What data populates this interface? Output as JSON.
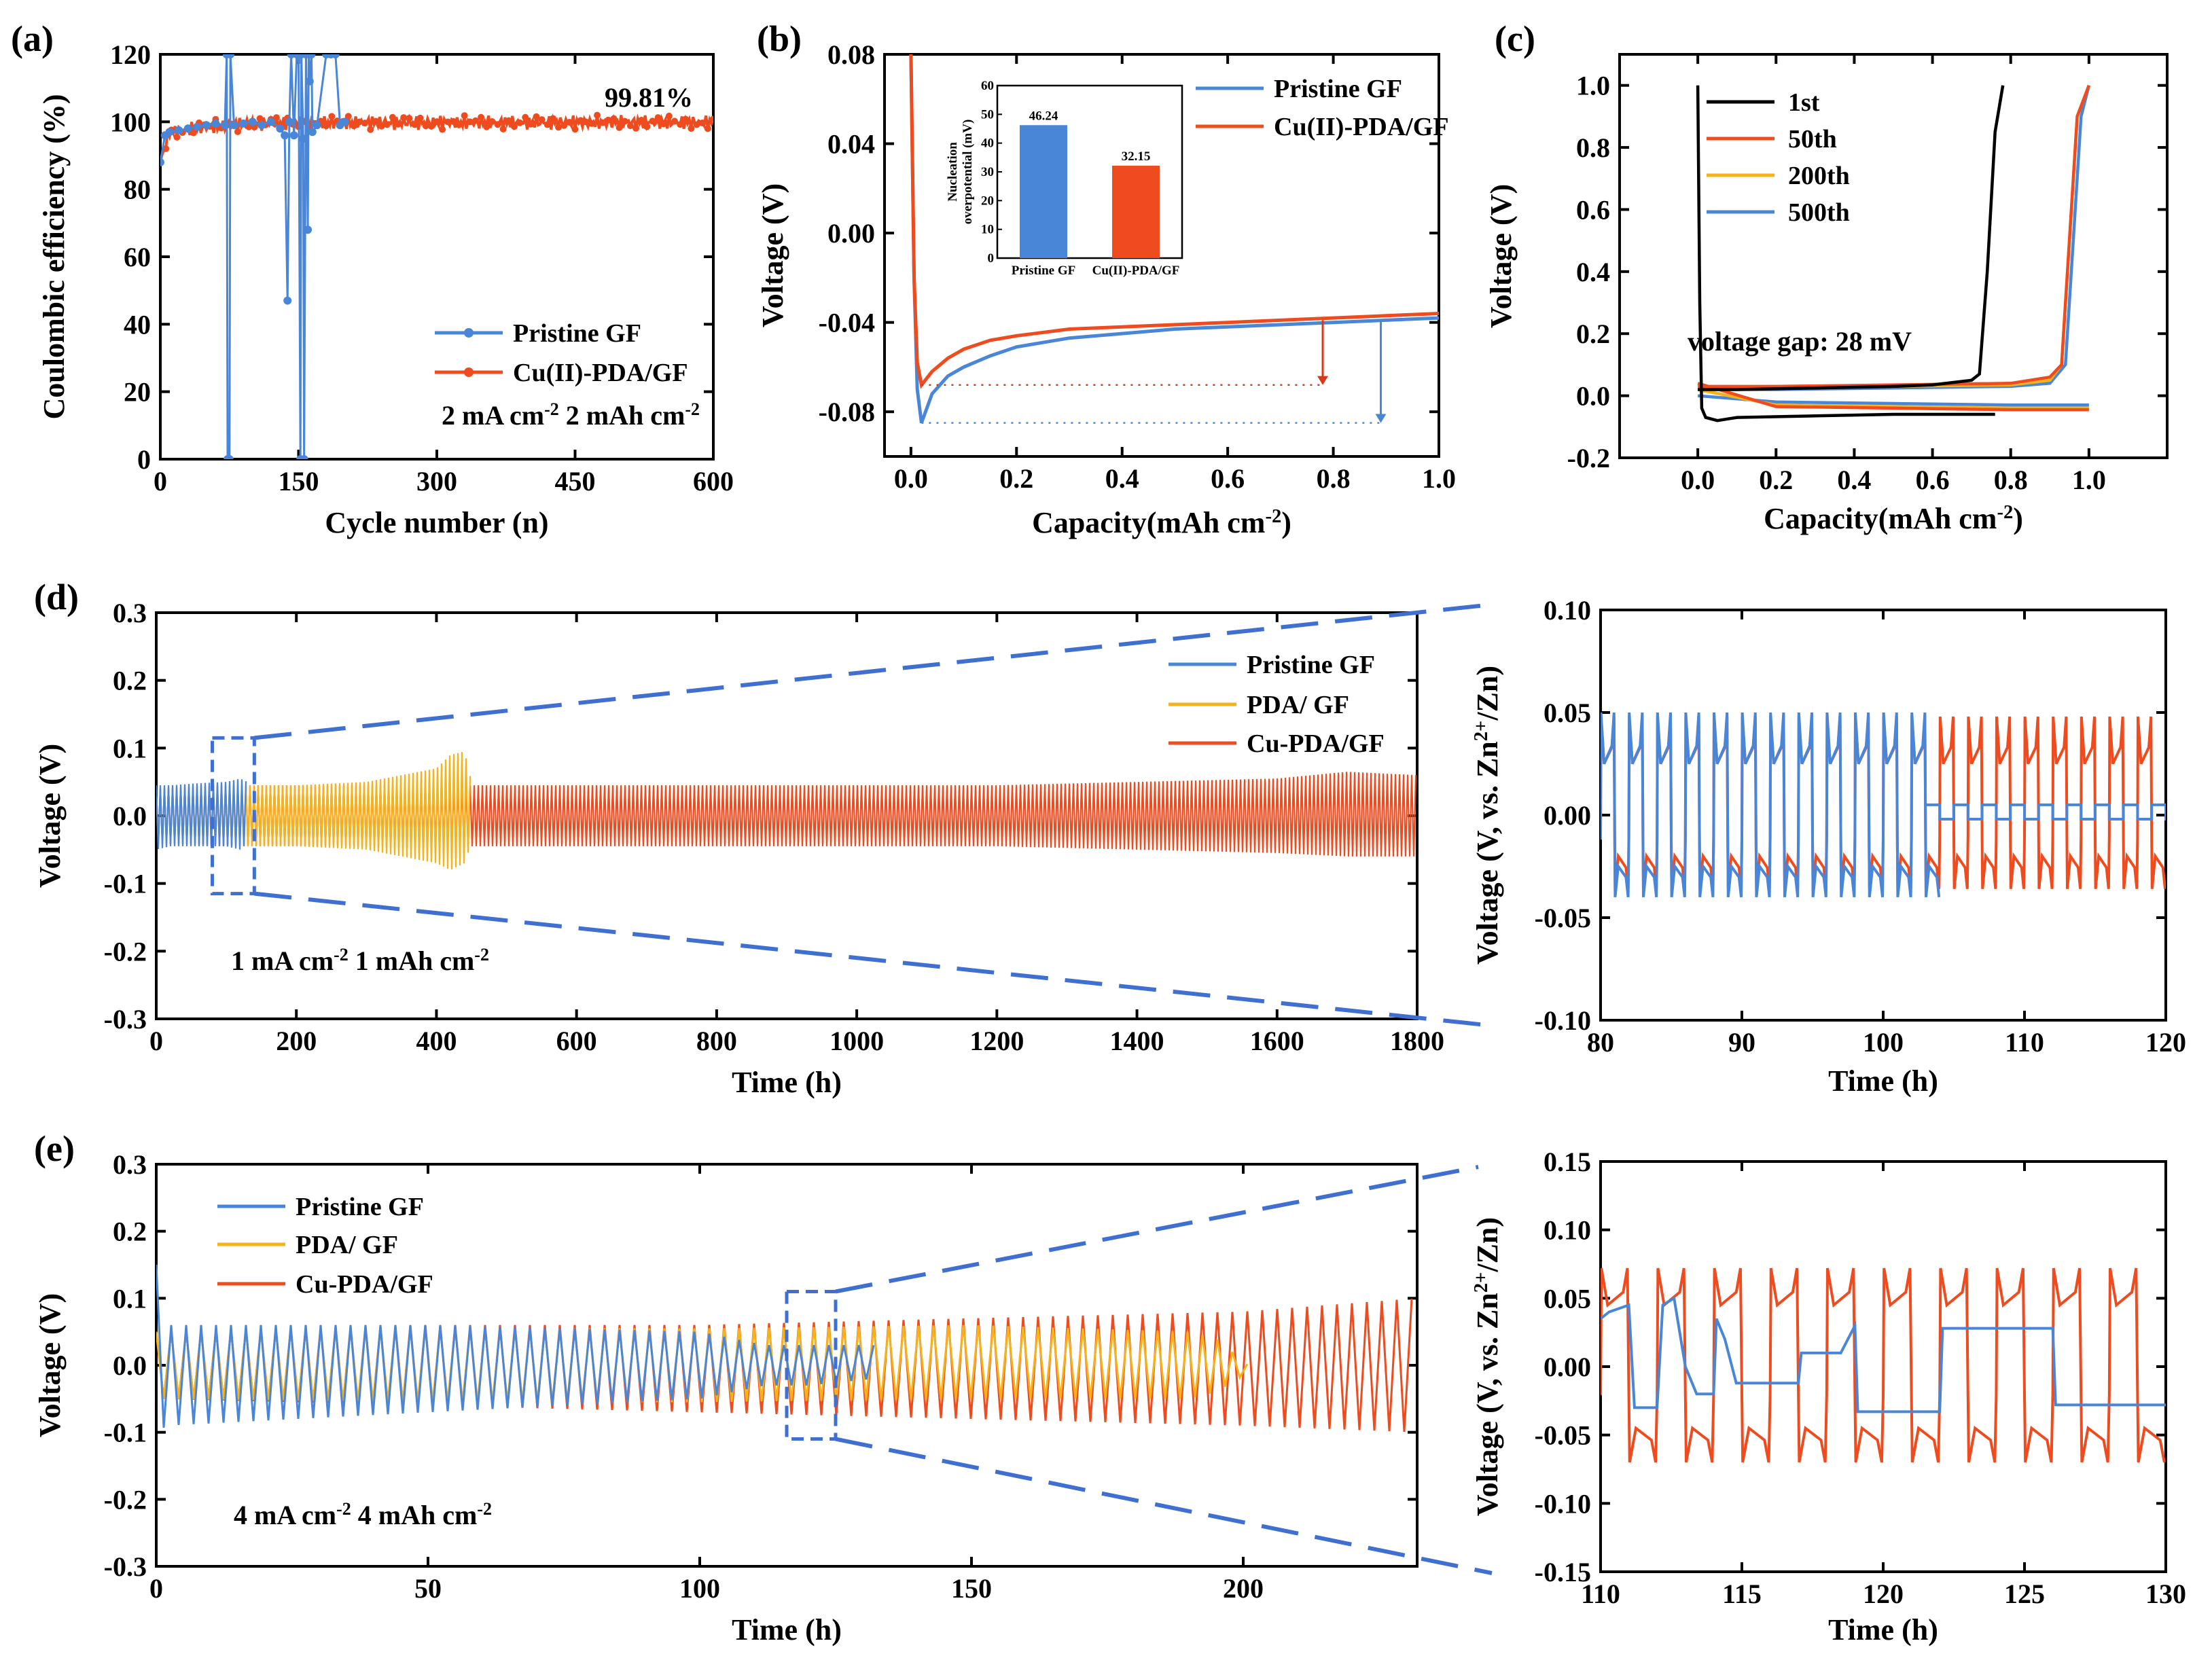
{
  "colors": {
    "blue": "#4a86d8",
    "red": "#ee4b1f",
    "orange": "#f5b21a",
    "black": "#000000",
    "dash_blue": "#3f6fd0",
    "darkred": "#d8391c"
  },
  "chart_data": [
    {
      "id": "a",
      "panel_label": "(a)",
      "type": "line",
      "xlabel": "Cycle number (n)",
      "ylabel": "Coulombic efficiency (%)",
      "xlim": [
        0,
        600
      ],
      "ylim": [
        0,
        120
      ],
      "xticks": [
        "0",
        "150",
        "300",
        "450",
        "600"
      ],
      "yticks": [
        "0",
        "20",
        "40",
        "60",
        "80",
        "100",
        "120"
      ],
      "series": [
        {
          "name": "Pristine GF",
          "color": "#4a86d8",
          "x": [
            0,
            5,
            10,
            20,
            30,
            40,
            50,
            60,
            70,
            72,
            73,
            75,
            76,
            80,
            90,
            100,
            110,
            120,
            130,
            135,
            138,
            140,
            142,
            145,
            148,
            150,
            152,
            153,
            155,
            156,
            158,
            160,
            161,
            162,
            164,
            165,
            170,
            180,
            185,
            190,
            195,
            200
          ],
          "y": [
            88,
            96,
            97,
            97.5,
            98,
            98.5,
            99,
            99.5,
            99,
            120,
            0,
            0,
            120,
            99,
            99.5,
            100,
            99,
            100,
            98,
            96,
            47,
            100,
            120,
            96,
            120,
            120,
            0,
            120,
            95,
            0,
            120,
            68,
            120,
            112,
            120,
            97,
            99,
            120,
            120,
            120,
            99,
            100
          ]
        },
        {
          "name": "Cu(II)-PDA/GF",
          "color": "#ee4b1f",
          "x": [
            0,
            10,
            50,
            100,
            150,
            200,
            300,
            400,
            500,
            600
          ],
          "y": [
            88,
            97,
            98.5,
            99.5,
            99.8,
            99.8,
            99.8,
            99.8,
            99.8,
            99.8
          ]
        }
      ],
      "annotations": [
        "99.81%",
        "2 mA  cm<sup>-2</sup> 2 mAh cm<sup>-2</sup>"
      ]
    },
    {
      "id": "b",
      "panel_label": "(b)",
      "type": "line",
      "xlabel": "Capacity(mAh cm<sup>-2</sup>)",
      "ylabel": "Voltage (V)",
      "xlim": [
        -0.05,
        1.0
      ],
      "ylim": [
        -0.1,
        0.08
      ],
      "xticks": [
        "0.0",
        "0.2",
        "0.4",
        "0.6",
        "0.8",
        "1.0"
      ],
      "yticks": [
        "-0.08",
        "-0.04",
        "0.00",
        "0.04",
        "0.08"
      ],
      "series": [
        {
          "name": "Pristine GF",
          "color": "#4a86d8",
          "x": [
            0.0,
            0.006,
            0.012,
            0.02,
            0.04,
            0.07,
            0.1,
            0.15,
            0.2,
            0.3,
            0.4,
            0.5,
            0.6,
            0.7,
            0.8,
            0.9,
            1.0
          ],
          "y": [
            0.08,
            -0.02,
            -0.07,
            -0.085,
            -0.072,
            -0.064,
            -0.06,
            -0.055,
            -0.051,
            -0.047,
            -0.045,
            -0.043,
            -0.042,
            -0.041,
            -0.04,
            -0.039,
            -0.038
          ]
        },
        {
          "name": "Cu(II)-PDA/GF",
          "color": "#ee4b1f",
          "x": [
            0.0,
            0.006,
            0.012,
            0.02,
            0.04,
            0.07,
            0.1,
            0.15,
            0.2,
            0.3,
            0.4,
            0.5,
            0.6,
            0.7,
            0.8,
            0.9,
            1.0
          ],
          "y": [
            0.08,
            -0.02,
            -0.058,
            -0.068,
            -0.062,
            -0.056,
            -0.052,
            -0.048,
            -0.046,
            -0.043,
            -0.042,
            -0.041,
            -0.04,
            -0.039,
            -0.038,
            -0.037,
            -0.036
          ]
        }
      ],
      "inset": {
        "type": "bar",
        "ylabel_line1": "Nucleation",
        "ylabel_line2": "overpotential (mV)",
        "ylim": [
          0,
          60
        ],
        "yticks": [
          "0",
          "10",
          "20",
          "30",
          "40",
          "50",
          "60"
        ],
        "categories": [
          "Pristine GF",
          "Cu(II)-PDA/GF"
        ],
        "values": [
          46.24,
          32.15
        ],
        "value_labels": [
          "46.24",
          "32.15"
        ],
        "colors": [
          "#4a86d8",
          "#ee4b1f"
        ]
      }
    },
    {
      "id": "c",
      "panel_label": "(c)",
      "type": "line",
      "xlabel": "Capacity(mAh cm<sup>-2</sup>)",
      "ylabel": "Voltage (V)",
      "xlim": [
        -0.2,
        1.2
      ],
      "ylim": [
        -0.2,
        1.1
      ],
      "xticks": [
        "0.0",
        "0.2",
        "0.4",
        "0.6",
        "0.8",
        "1.0"
      ],
      "yticks": [
        "-0.2",
        "0.0",
        "0.2",
        "0.4",
        "0.6",
        "0.8",
        "1.0"
      ],
      "series": [
        {
          "name": "1st",
          "color": "#000000",
          "label_color": "#000000",
          "x": [
            0.0,
            0.005,
            0.01,
            0.02,
            0.05,
            0.1,
            0.3,
            0.5,
            0.7,
            0.76,
            0.0,
            0.1,
            0.3,
            0.5,
            0.6,
            0.7,
            0.72,
            0.74,
            0.76,
            0.78
          ],
          "y": [
            1.0,
            0.3,
            -0.04,
            -0.07,
            -0.08,
            -0.07,
            -0.065,
            -0.06,
            -0.06,
            -0.06,
            0.02,
            0.02,
            0.025,
            0.03,
            0.035,
            0.05,
            0.07,
            0.4,
            0.85,
            1.0
          ],
          "break_after": 9
        },
        {
          "name": "50th",
          "color": "#ee4b1f",
          "label_color": "#e83a2a",
          "x": [
            0.0,
            0.2,
            0.5,
            0.8,
            0.98,
            1.0,
            0.0,
            0.2,
            0.5,
            0.8,
            0.9,
            0.93,
            0.95,
            0.97,
            1.0
          ],
          "y": [
            0.04,
            -0.035,
            -0.04,
            -0.045,
            -0.045,
            -0.045,
            0.03,
            0.03,
            0.035,
            0.04,
            0.06,
            0.1,
            0.5,
            0.9,
            1.0
          ],
          "break_after": 5
        },
        {
          "name": "200th",
          "color": "#f5b21a",
          "label_color": "#f5b21a",
          "x": [
            0.0,
            0.2,
            0.5,
            0.8,
            1.0,
            0.0,
            0.2,
            0.5,
            0.8,
            0.9,
            0.93,
            0.95,
            0.97,
            1.0
          ],
          "y": [
            0.02,
            -0.03,
            -0.035,
            -0.04,
            -0.04,
            0.025,
            0.03,
            0.03,
            0.035,
            0.05,
            0.1,
            0.5,
            0.9,
            1.0
          ],
          "break_after": 4
        },
        {
          "name": "500th",
          "color": "#4a86d8",
          "label_color": "#4a86d8",
          "x": [
            0.0,
            0.2,
            0.5,
            0.8,
            1.0,
            0.0,
            0.2,
            0.5,
            0.8,
            0.9,
            0.94,
            0.96,
            0.98,
            1.0
          ],
          "y": [
            0.0,
            -0.02,
            -0.025,
            -0.03,
            -0.03,
            0.02,
            0.02,
            0.025,
            0.03,
            0.04,
            0.1,
            0.5,
            0.9,
            1.0
          ],
          "break_after": 4
        }
      ],
      "annotations": [
        "voltage gap: 28 mV"
      ]
    },
    {
      "id": "d",
      "panel_label": "(d)",
      "type": "line",
      "xlabel": "Time (h)",
      "ylabel": "Voltage (V)",
      "xlim": [
        0,
        1800
      ],
      "ylim": [
        -0.3,
        0.3
      ],
      "xticks": [
        "0",
        "200",
        "400",
        "600",
        "800",
        "1000",
        "1200",
        "1400",
        "1600",
        "1800"
      ],
      "yticks": [
        "-0.3",
        "-0.2",
        "-0.1",
        "0.0",
        "0.1",
        "0.2",
        "0.3"
      ],
      "series": [
        {
          "name": "Cu-PDA/GF",
          "color": "#ee4b1f",
          "x": [
            0,
            100,
            400,
            800,
            1200,
            1600,
            1700,
            1800
          ],
          "upper": [
            0.04,
            0.045,
            0.045,
            0.045,
            0.045,
            0.055,
            0.065,
            0.06
          ],
          "lower": [
            -0.04,
            -0.045,
            -0.045,
            -0.045,
            -0.045,
            -0.055,
            -0.06,
            -0.06
          ]
        },
        {
          "name": "PDA/ GF",
          "color": "#f5b21a",
          "x": [
            0,
            100,
            200,
            300,
            350,
            400,
            420,
            440,
            450
          ],
          "upper": [
            0.04,
            0.045,
            0.045,
            0.05,
            0.06,
            0.07,
            0.09,
            0.095,
            0.05
          ],
          "lower": [
            -0.04,
            -0.045,
            -0.045,
            -0.05,
            -0.06,
            -0.07,
            -0.08,
            -0.07,
            -0.04
          ]
        },
        {
          "name": "Pristine GF",
          "color": "#4a86d8",
          "x": [
            0,
            20,
            60,
            100,
            120,
            130
          ],
          "upper": [
            0.045,
            0.045,
            0.048,
            0.05,
            0.055,
            0.05
          ],
          "lower": [
            -0.05,
            -0.045,
            -0.045,
            -0.045,
            -0.05,
            -0.04
          ]
        }
      ],
      "zoom_box": {
        "x": [
          80,
          140
        ],
        "y": [
          -0.115,
          0.115
        ]
      },
      "annotations": [
        "1 mA cm<sup>-2</sup>  1 mAh cm<sup>-2</sup>"
      ]
    },
    {
      "id": "d_zoom",
      "type": "line",
      "xlabel": "Time (h)",
      "ylabel": "Voltage (V, vs. Zn<sup>2+</sup>/Zn)",
      "xlim": [
        80,
        120
      ],
      "ylim": [
        -0.1,
        0.1
      ],
      "xticks": [
        "80",
        "90",
        "100",
        "110",
        "120"
      ],
      "yticks": [
        "-0.10",
        "-0.05",
        "0.00",
        "0.05",
        "0.10"
      ],
      "series": [
        {
          "name": "Cu-PDA/GF",
          "color": "#ee4b1f",
          "period": 2.0,
          "start": 80,
          "end": 120,
          "charge_top": 0.048,
          "charge_base": 0.025,
          "discharge_top": -0.036,
          "discharge_base": -0.02
        },
        {
          "name": "Pristine GF",
          "color": "#4a86d8",
          "period": 2.0,
          "start": 80,
          "end": 120,
          "charge_top": 0.05,
          "charge_base": 0.025,
          "discharge_top": -0.04,
          "discharge_base": -0.025,
          "short_after": 103,
          "short_value_hi": 0.005,
          "short_value_lo": -0.002
        }
      ]
    },
    {
      "id": "e",
      "panel_label": "(e)",
      "type": "line",
      "xlabel": "Time (h)",
      "ylabel": "Voltage (V)",
      "xlim": [
        0,
        232
      ],
      "ylim": [
        -0.3,
        0.3
      ],
      "xticks": [
        "0",
        "50",
        "100",
        "150",
        "200"
      ],
      "yticks": [
        "-0.3",
        "-0.2",
        "-0.1",
        "0.0",
        "0.1",
        "0.2",
        "0.3"
      ],
      "series": [
        {
          "name": "Cu-PDA/GF",
          "color": "#ee4b1f",
          "x": [
            0,
            50,
            100,
            150,
            200,
            232
          ],
          "upper": [
            0.05,
            0.06,
            0.06,
            0.07,
            0.08,
            0.1
          ],
          "lower": [
            -0.05,
            -0.06,
            -0.07,
            -0.08,
            -0.09,
            -0.1
          ]
        },
        {
          "name": "PDA/ GF",
          "color": "#f5b21a",
          "x": [
            0,
            50,
            100,
            150,
            190,
            195,
            201
          ],
          "upper": [
            0.05,
            0.055,
            0.055,
            0.06,
            0.05,
            0.04,
            0.0
          ],
          "lower": [
            -0.05,
            -0.055,
            -0.055,
            -0.05,
            -0.05,
            -0.04,
            -0.01
          ]
        },
        {
          "name": "Pristine GF",
          "color": "#4a86d8",
          "x": [
            0,
            2,
            50,
            100,
            112,
            120,
            132
          ],
          "upper": [
            0.15,
            0.06,
            0.06,
            0.05,
            0.03,
            0.03,
            0.03
          ],
          "lower": [
            -0.1,
            -0.09,
            -0.07,
            -0.05,
            -0.03,
            -0.03,
            -0.02
          ]
        }
      ],
      "zoom_box": {
        "x": [
          116,
          125
        ],
        "y": [
          -0.11,
          0.11
        ]
      },
      "annotations": [
        "4 mA cm<sup>-2</sup>  4 mAh cm<sup>-2</sup>"
      ]
    },
    {
      "id": "e_zoom",
      "type": "line",
      "xlabel": "Time (h)",
      "ylabel": "Voltage (V, vs. Zn<sup>2+</sup>/Zn)",
      "xlim": [
        110,
        130
      ],
      "ylim": [
        -0.15,
        0.15
      ],
      "xticks": [
        "110",
        "115",
        "120",
        "125",
        "130"
      ],
      "yticks": [
        "-0.15",
        "-0.10",
        "-0.05",
        "0.00",
        "0.05",
        "0.10",
        "0.15"
      ],
      "series": [
        {
          "name": "Cu-PDA/GF",
          "color": "#ee4b1f",
          "period": 2.0,
          "start": 110,
          "end": 130,
          "charge_top": 0.072,
          "charge_base": 0.045,
          "discharge_top": -0.07,
          "discharge_base": -0.045
        },
        {
          "name": "Pristine GF",
          "color": "#4a86d8",
          "x": [
            110,
            110.3,
            111,
            111.2,
            111.4,
            112,
            112.2,
            112.6,
            113,
            113.4,
            114,
            114.1,
            114.4,
            114.8,
            115,
            117,
            117.1,
            118.5,
            119,
            119.1,
            122,
            122.1,
            126,
            126.1,
            130
          ],
          "y": [
            0.035,
            0.04,
            0.045,
            -0.03,
            -0.03,
            -0.03,
            0.045,
            0.05,
            0.0,
            -0.02,
            -0.02,
            0.035,
            0.02,
            -0.012,
            -0.012,
            -0.012,
            0.01,
            0.01,
            0.03,
            -0.033,
            -0.033,
            0.028,
            0.028,
            -0.028,
            -0.028
          ]
        }
      ]
    }
  ]
}
